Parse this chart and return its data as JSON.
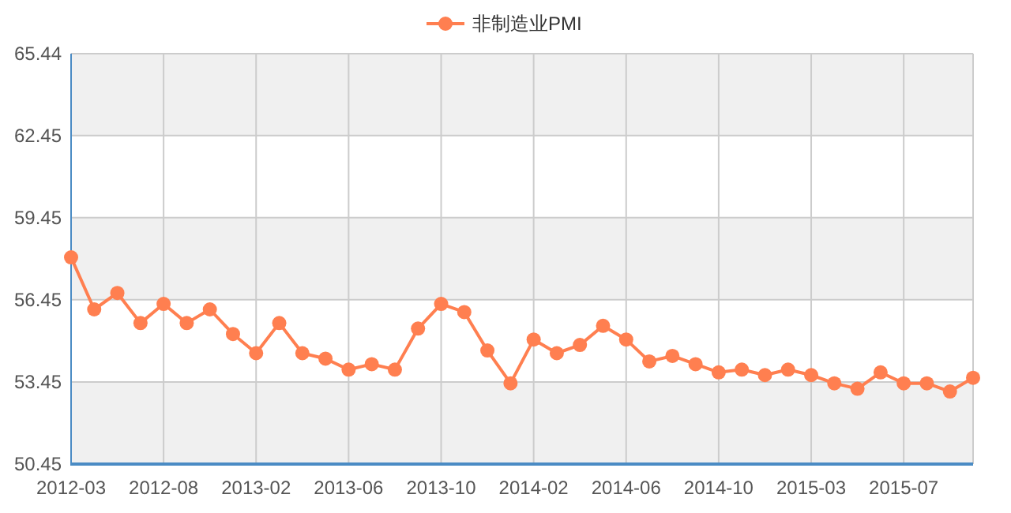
{
  "chart_data": {
    "type": "line",
    "categories": [
      "2012-03",
      null,
      null,
      null,
      "2012-08",
      null,
      null,
      null,
      "2013-02",
      null,
      null,
      null,
      "2013-06",
      null,
      null,
      null,
      "2013-10",
      null,
      null,
      null,
      "2014-02",
      null,
      null,
      null,
      "2014-06",
      null,
      null,
      null,
      "2014-10",
      null,
      null,
      null,
      "2015-03",
      null,
      null,
      null,
      "2015-07",
      null,
      null,
      null
    ],
    "series": [
      {
        "name": "非制造业PMI",
        "color": "#ff7f50",
        "values": [
          58.0,
          56.1,
          56.7,
          55.6,
          56.3,
          55.6,
          56.1,
          55.2,
          54.5,
          55.6,
          54.5,
          54.3,
          53.9,
          54.1,
          53.9,
          55.4,
          56.3,
          56.0,
          54.6,
          53.4,
          55.0,
          54.5,
          54.8,
          55.5,
          55.0,
          54.2,
          54.4,
          54.1,
          53.8,
          53.9,
          53.7,
          53.9,
          53.7,
          53.4,
          53.2,
          53.8,
          53.4,
          53.4,
          53.1,
          53.6
        ]
      }
    ],
    "ylim": [
      50.45,
      65.44
    ],
    "yticks": [
      50.45,
      53.45,
      56.45,
      59.45,
      62.45,
      65.44
    ],
    "grid": true,
    "legend": "top",
    "marker": "circle",
    "line_style": "solid"
  }
}
